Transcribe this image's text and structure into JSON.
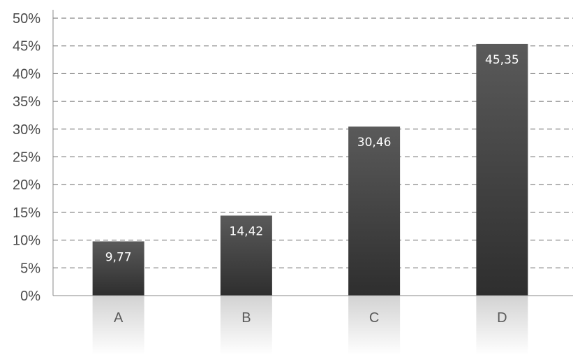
{
  "chart_data": {
    "type": "bar",
    "categories": [
      "A",
      "B",
      "C",
      "D"
    ],
    "values": [
      9.77,
      14.42,
      30.46,
      45.35
    ],
    "data_labels": [
      "9,77",
      "14,42",
      "30,46",
      "45,35"
    ],
    "y_tick_labels": [
      "0%",
      "5%",
      "10%",
      "15%",
      "20%",
      "25%",
      "30%",
      "35%",
      "40%",
      "45%",
      "50%"
    ],
    "ylim": [
      0,
      50
    ],
    "ytick_step": 5,
    "grid": true,
    "grid_style": "dashed",
    "title": "",
    "xlabel": "",
    "ylabel": "",
    "colors": {
      "bar_top": "#5a5a5a",
      "bar_bottom": "#2e2e2e",
      "label_text": "#ffffff",
      "reflection": "#d8d8d8"
    }
  }
}
